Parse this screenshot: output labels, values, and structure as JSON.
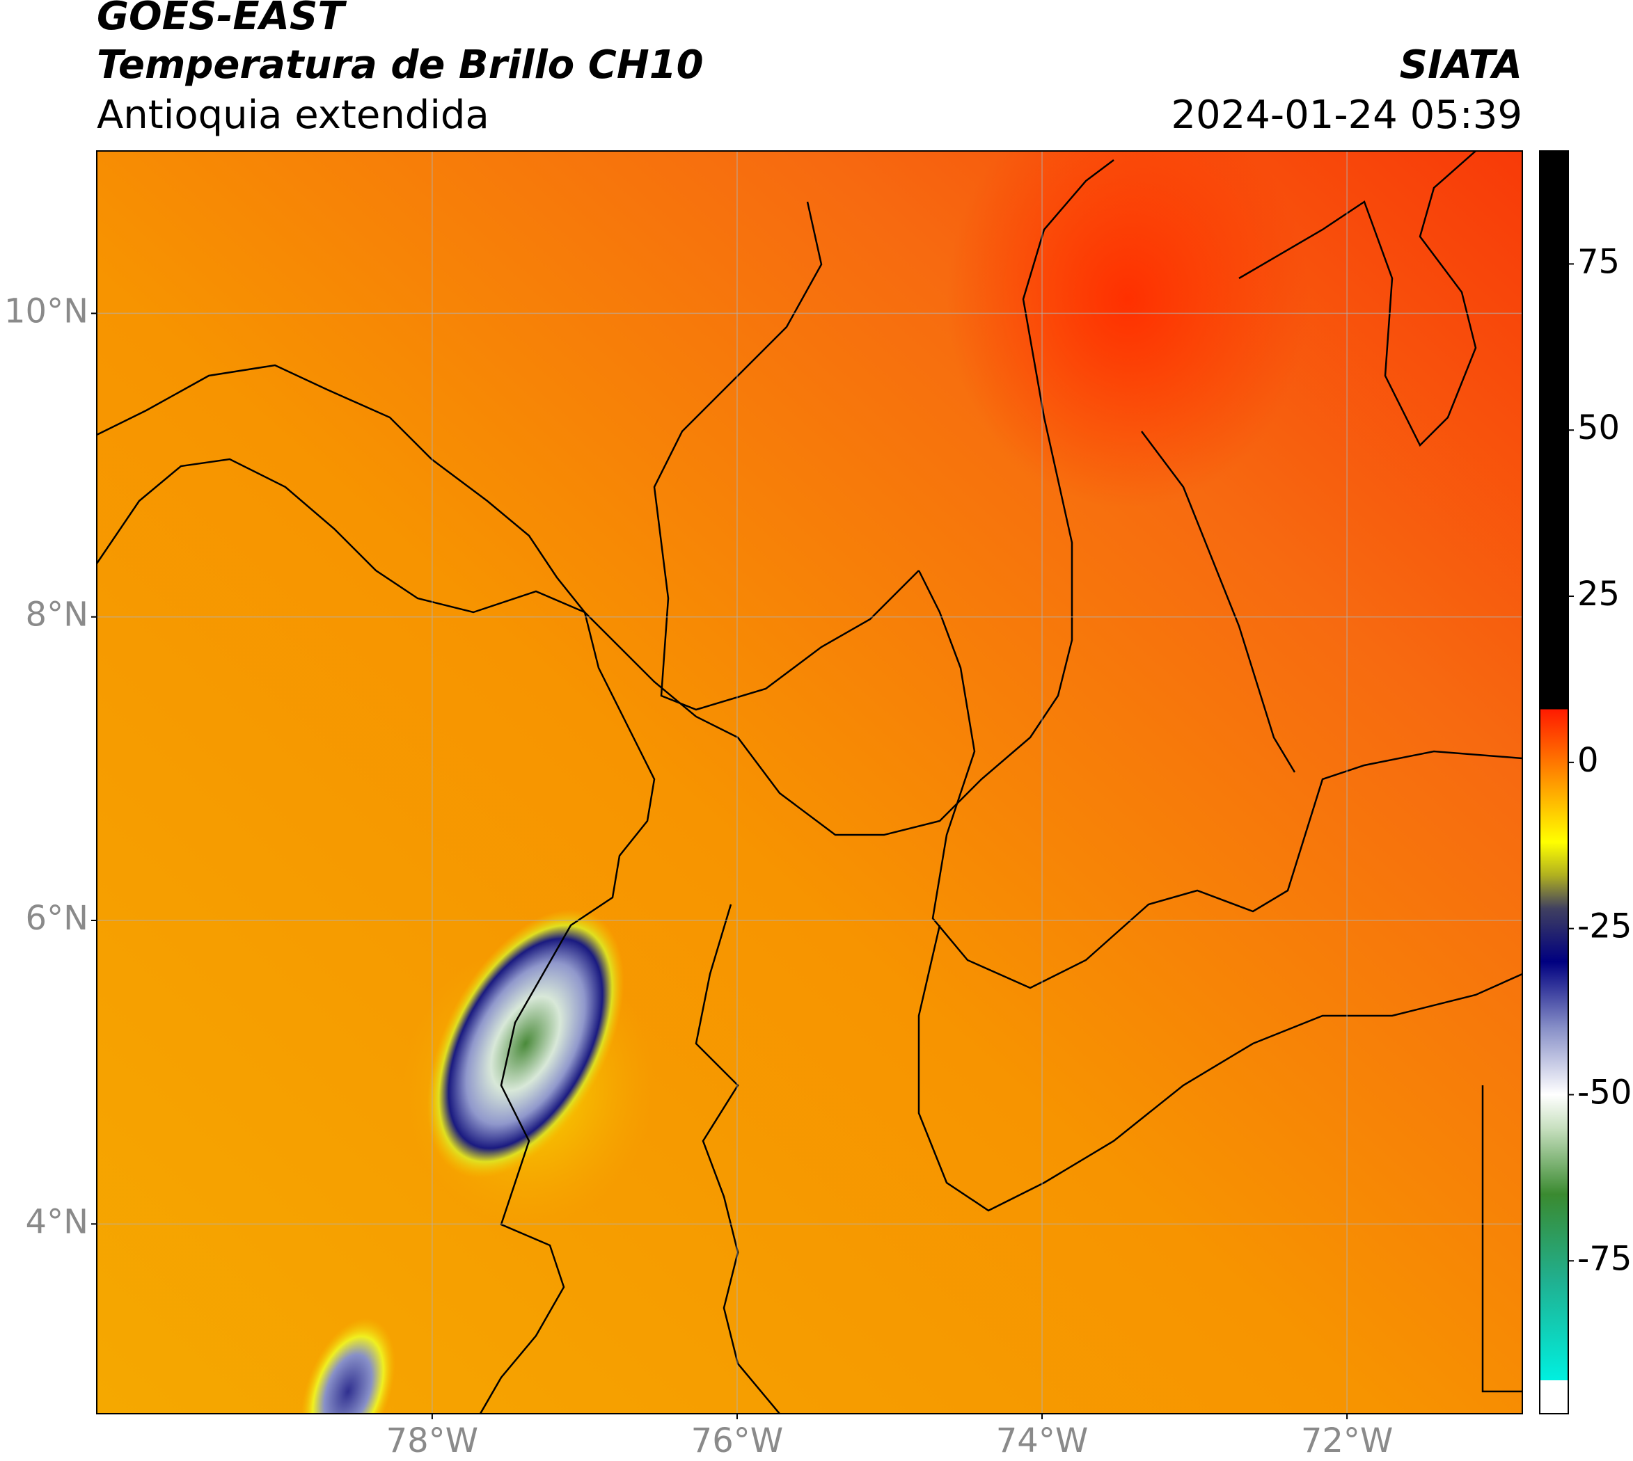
{
  "header": {
    "title": "GOES-EAST",
    "subtitle": "Temperatura de Brillo CH10",
    "region": "Antioquia extendida",
    "source": "SIATA",
    "datetime": "2024-01-24 05:39"
  },
  "map": {
    "xlim": [
      -80.2,
      -70.85
    ],
    "ylim": [
      2.75,
      11.07
    ],
    "xticks": [
      {
        "value": -78,
        "label": "78°W"
      },
      {
        "value": -76,
        "label": "76°W"
      },
      {
        "value": -74,
        "label": "74°W"
      },
      {
        "value": -72,
        "label": "72°W"
      }
    ],
    "yticks": [
      {
        "value": 4,
        "label": "4°N"
      },
      {
        "value": 6,
        "label": "6°N"
      },
      {
        "value": 8,
        "label": "8°N"
      },
      {
        "value": 10,
        "label": "10°N"
      }
    ],
    "grid": true
  },
  "colorbar": {
    "lim": [
      -98,
      92
    ],
    "ticks": [
      -75,
      -50,
      -25,
      0,
      25,
      50,
      75
    ],
    "stops": [
      {
        "value": -98,
        "color": "#ffffff"
      },
      {
        "value": -93,
        "color": "#ffffff"
      },
      {
        "value": -93,
        "color": "#00f0e0"
      },
      {
        "value": -78,
        "color": "#20b090"
      },
      {
        "value": -65,
        "color": "#3a8a30"
      },
      {
        "value": -55,
        "color": "#c8e0c0"
      },
      {
        "value": -50,
        "color": "#ffffff"
      },
      {
        "value": -40,
        "color": "#8890c8"
      },
      {
        "value": -30,
        "color": "#000080"
      },
      {
        "value": -22,
        "color": "#404060"
      },
      {
        "value": -17,
        "color": "#b0b020"
      },
      {
        "value": -12,
        "color": "#ffff00"
      },
      {
        "value": -4,
        "color": "#ffa500"
      },
      {
        "value": 8,
        "color": "#ff1a00"
      },
      {
        "value": 8,
        "color": "#000000"
      },
      {
        "value": 92,
        "color": "#000000"
      }
    ]
  }
}
